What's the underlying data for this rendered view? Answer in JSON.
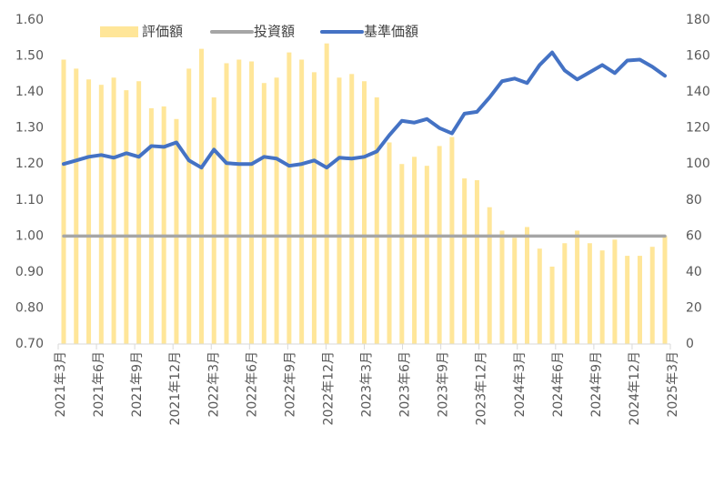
{
  "chart_data": {
    "type": "bar+line",
    "title": "",
    "legend": {
      "placement": "top",
      "items": [
        {
          "name": "評価額",
          "kind": "bar",
          "color": "#FFE699"
        },
        {
          "name": "投資額",
          "kind": "line",
          "color": "#A6A6A6"
        },
        {
          "name": "基準価額",
          "kind": "line",
          "color": "#4472C4"
        }
      ]
    },
    "x_labels": [
      "2021年3月",
      "2021年6月",
      "2021年9月",
      "2021年12月",
      "2022年3月",
      "2022年6月",
      "2022年9月",
      "2022年12月",
      "2023年3月",
      "2023年6月",
      "2023年9月",
      "2023年12月",
      "2024年3月",
      "2024年6月",
      "2024年9月",
      "2024年12月",
      "2025年3月"
    ],
    "x_label_every": 3,
    "left_axis": {
      "min": 0.7,
      "max": 1.6,
      "step": 0.1,
      "tick_labels": [
        "0.70",
        "0.80",
        "0.90",
        "1.00",
        "1.10",
        "1.20",
        "1.30",
        "1.40",
        "1.50",
        "1.60"
      ]
    },
    "right_axis": {
      "min": 0,
      "max": 180,
      "step": 20,
      "tick_labels": [
        "0",
        "20",
        "40",
        "60",
        "80",
        "100",
        "120",
        "140",
        "160",
        "180"
      ]
    },
    "grid": false,
    "series": [
      {
        "name": "評価額",
        "type": "bar",
        "axis": "left",
        "color": "#FFE699",
        "values": [
          1.49,
          1.465,
          1.435,
          1.42,
          1.44,
          1.405,
          1.43,
          1.355,
          1.36,
          1.325,
          1.465,
          1.52,
          1.385,
          1.48,
          1.49,
          1.485,
          1.425,
          1.44,
          1.51,
          1.49,
          1.455,
          1.535,
          1.44,
          1.45,
          1.43,
          1.385,
          1.26,
          1.2,
          1.22,
          1.195,
          1.25,
          1.275,
          1.16,
          1.155,
          1.08,
          1.015,
          0.995,
          1.025,
          0.965,
          0.915,
          0.98,
          1.015,
          0.98,
          0.96,
          0.99,
          0.945,
          0.945,
          0.97,
          1.0
        ]
      },
      {
        "name": "投資額",
        "type": "line",
        "axis": "left",
        "color": "#A6A6A6",
        "values": [
          1.0,
          1.0,
          1.0,
          1.0,
          1.0,
          1.0,
          1.0,
          1.0,
          1.0,
          1.0,
          1.0,
          1.0,
          1.0,
          1.0,
          1.0,
          1.0,
          1.0,
          1.0,
          1.0,
          1.0,
          1.0,
          1.0,
          1.0,
          1.0,
          1.0,
          1.0,
          1.0,
          1.0,
          1.0,
          1.0,
          1.0,
          1.0,
          1.0,
          1.0,
          1.0,
          1.0,
          1.0,
          1.0,
          1.0,
          1.0,
          1.0,
          1.0,
          1.0,
          1.0,
          1.0,
          1.0,
          1.0,
          1.0,
          1.0
        ]
      },
      {
        "name": "基準価額",
        "type": "line",
        "axis": "right",
        "color": "#4472C4",
        "values": [
          100,
          102,
          104,
          105,
          103.5,
          106,
          104,
          110,
          109.5,
          112,
          102,
          98,
          108,
          100.5,
          100,
          100,
          104,
          103,
          99,
          100,
          102,
          98,
          103.5,
          103,
          104,
          107,
          116,
          124,
          123,
          125,
          120,
          117,
          128,
          129,
          137,
          146,
          147.5,
          145,
          155,
          162,
          152,
          147,
          151,
          155,
          150.5,
          157.5,
          158,
          154,
          149
        ]
      }
    ]
  }
}
